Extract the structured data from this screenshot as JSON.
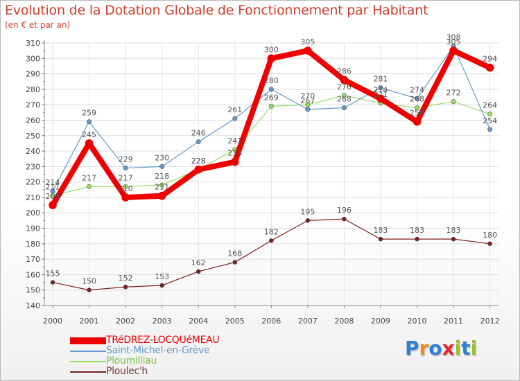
{
  "chart_data": {
    "type": "line",
    "title": "Evolution de la Dotation Globale de Fonctionnement par Habitant",
    "subtitle": "(en € et par an)",
    "categories": [
      "2000",
      "2001",
      "2002",
      "2003",
      "2004",
      "2005",
      "2006",
      "2007",
      "2008",
      "2009",
      "2010",
      "2011",
      "2012"
    ],
    "ylim": [
      140,
      310
    ],
    "yticks": [
      140,
      150,
      160,
      170,
      180,
      190,
      200,
      210,
      220,
      230,
      240,
      250,
      260,
      270,
      280,
      290,
      300,
      310
    ],
    "grid": true,
    "series": [
      {
        "name": "Ploulec'h",
        "color": "#7a1f1f",
        "values": [
          155,
          150,
          152,
          153,
          162,
          168,
          182,
          195,
          196,
          183,
          183,
          183,
          180
        ],
        "labels": [
          "155",
          "150",
          "152",
          "153",
          "162",
          "168",
          "182",
          "195",
          "196",
          "183",
          "183",
          "183",
          "180"
        ]
      },
      {
        "name": "Ploumilliau",
        "color": "#99dd66",
        "values": [
          211,
          217,
          217,
          218,
          228,
          241,
          269,
          270,
          276,
          271,
          268,
          272,
          264
        ],
        "labels": [
          "211",
          "217",
          "217",
          "218",
          "228",
          "241",
          "269",
          "270",
          "276",
          "271",
          "268",
          "272",
          "264"
        ]
      },
      {
        "name": "Saint-Michel-en-Grève",
        "color": "#6699cc",
        "values": [
          214,
          259,
          229,
          230,
          246,
          261,
          280,
          267,
          268,
          281,
          274,
          308,
          254
        ],
        "labels": [
          "214",
          "259",
          "229",
          "230",
          "246",
          "261",
          "280",
          "267",
          "268",
          "281",
          "274",
          "308",
          "254"
        ]
      },
      {
        "name": "TRéDREZ-LOCQUéMEAU",
        "color": "#ee0000",
        "values": [
          205,
          245,
          210,
          211,
          228,
          233,
          300,
          305,
          286,
          274,
          259,
          305,
          294
        ],
        "labels": [
          "205",
          "245",
          "210",
          "211",
          "228",
          "233",
          "300",
          "305",
          "286",
          "274",
          "259",
          "305",
          "294"
        ]
      }
    ]
  },
  "legend": {
    "items": [
      {
        "label": "TRéDREZ-LOCQUéMEAU",
        "color": "#ee0000"
      },
      {
        "label": "Saint-Michel-en-Grève",
        "color": "#6699cc"
      },
      {
        "label": "Ploumilliau",
        "color": "#99dd66"
      },
      {
        "label": "Ploulec'h",
        "color": "#7a1f1f"
      }
    ]
  },
  "logo": {
    "text": "Proxiti",
    "letters": [
      "P",
      "r",
      "o",
      "x",
      "i",
      "t",
      "i"
    ],
    "colors": [
      "#2f7fd5",
      "#ef8a1b",
      "#2f7fd5",
      "#e8262a",
      "#9bbf2a",
      "#2f7fd5",
      "#9bbf2a"
    ]
  }
}
